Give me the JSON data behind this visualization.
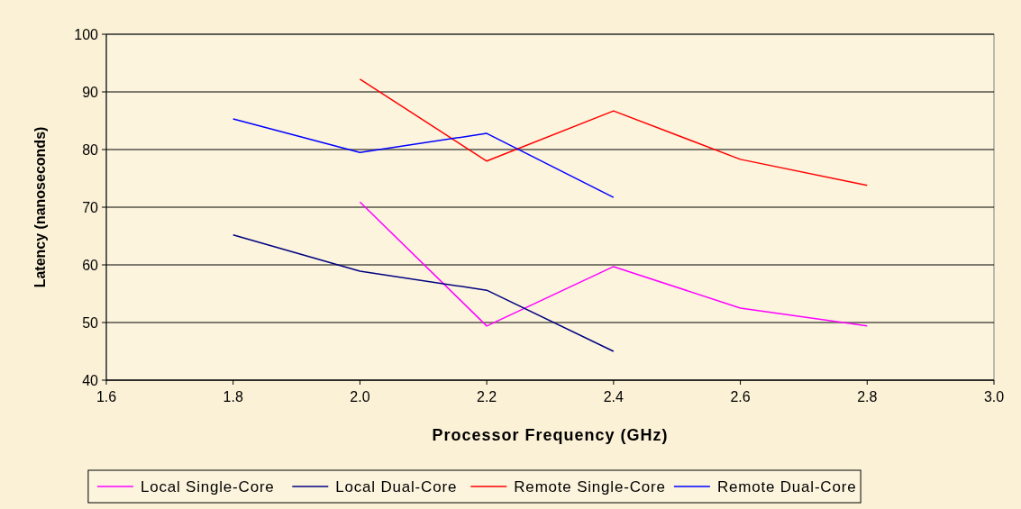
{
  "chart_data": {
    "type": "line",
    "xlabel": "Processor Frequency (GHz)",
    "ylabel": "Latency (nanoseconds)",
    "xlim": [
      1.6,
      3.0
    ],
    "xticks": [
      1.6,
      {
        "value": 1.8,
        "label": "1.8"
      },
      {
        "value": 2,
        "label": "2.0"
      },
      {
        "value": 2.2,
        "label": "2.2"
      },
      {
        "value": 2.4,
        "label": "2.4"
      },
      {
        "value": 2.6,
        "label": "2.6"
      },
      {
        "value": 2.8,
        "label": "2.8"
      },
      {
        "value": 3,
        "label": "3.0"
      }
    ],
    "ylim": [
      40,
      100
    ],
    "yticks": [
      40,
      50,
      60,
      70,
      80,
      90,
      100
    ],
    "grid": "y",
    "legend": "bottom",
    "marker": "none",
    "line_style": "solid",
    "series": [
      {
        "name": "Local Single-Core",
        "color": "#ff00ff",
        "x": [
          2.0,
          2.2,
          2.4,
          2.6,
          2.8
        ],
        "values": [
          70.9,
          49.4,
          59.7,
          52.5,
          49.4
        ]
      },
      {
        "name": "Local Dual-Core",
        "color": "#000080",
        "x": [
          1.8,
          2.0,
          2.2,
          2.4
        ],
        "values": [
          65.2,
          58.9,
          55.6,
          45.0
        ]
      },
      {
        "name": "Remote Single-Core",
        "color": "#ff0000",
        "x": [
          2.0,
          2.2,
          2.4,
          2.6,
          2.8
        ],
        "values": [
          92.2,
          78.0,
          86.7,
          78.3,
          73.8
        ]
      },
      {
        "name": "Remote Dual-Core",
        "color": "#0000ff",
        "x": [
          1.8,
          2.0,
          2.2,
          2.4
        ],
        "values": [
          85.3,
          79.5,
          82.8,
          71.7
        ]
      }
    ]
  }
}
